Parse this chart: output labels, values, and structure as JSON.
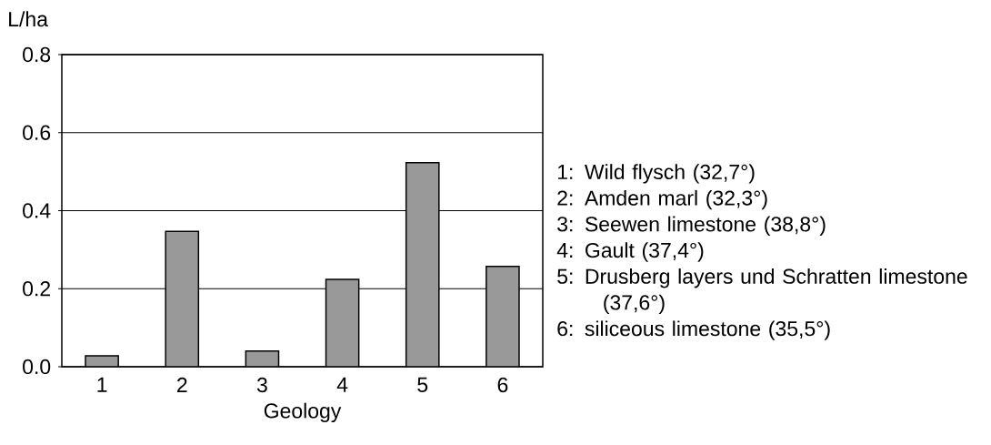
{
  "chart_data": {
    "type": "bar",
    "xlabel": "Geology",
    "ylabel": "L/ha",
    "categories": [
      "1",
      "2",
      "3",
      "4",
      "5",
      "6"
    ],
    "values": [
      0.028,
      0.347,
      0.04,
      0.224,
      0.523,
      0.257
    ],
    "color": "#999999",
    "ylim": [
      0,
      0.8
    ],
    "yticks": [
      {
        "value": 0,
        "label": "0.0"
      },
      {
        "value": 0.2,
        "label": "0.2"
      },
      {
        "value": 0.4,
        "label": "0.4"
      },
      {
        "value": 0.6,
        "label": "0.6"
      },
      {
        "value": 0.8,
        "label": "0.8"
      }
    ],
    "grid": "y",
    "annotations": [
      "1: Wild flysch (32,7°)",
      "2: Amden marl (32,3°)",
      "3: Seewen limestone (38,8°)",
      "4: Gault (37,4°)",
      "5: Drusberg layers und Schratten limestone (37,6°)",
      "6: siliceous limestone (35,5°)"
    ]
  }
}
